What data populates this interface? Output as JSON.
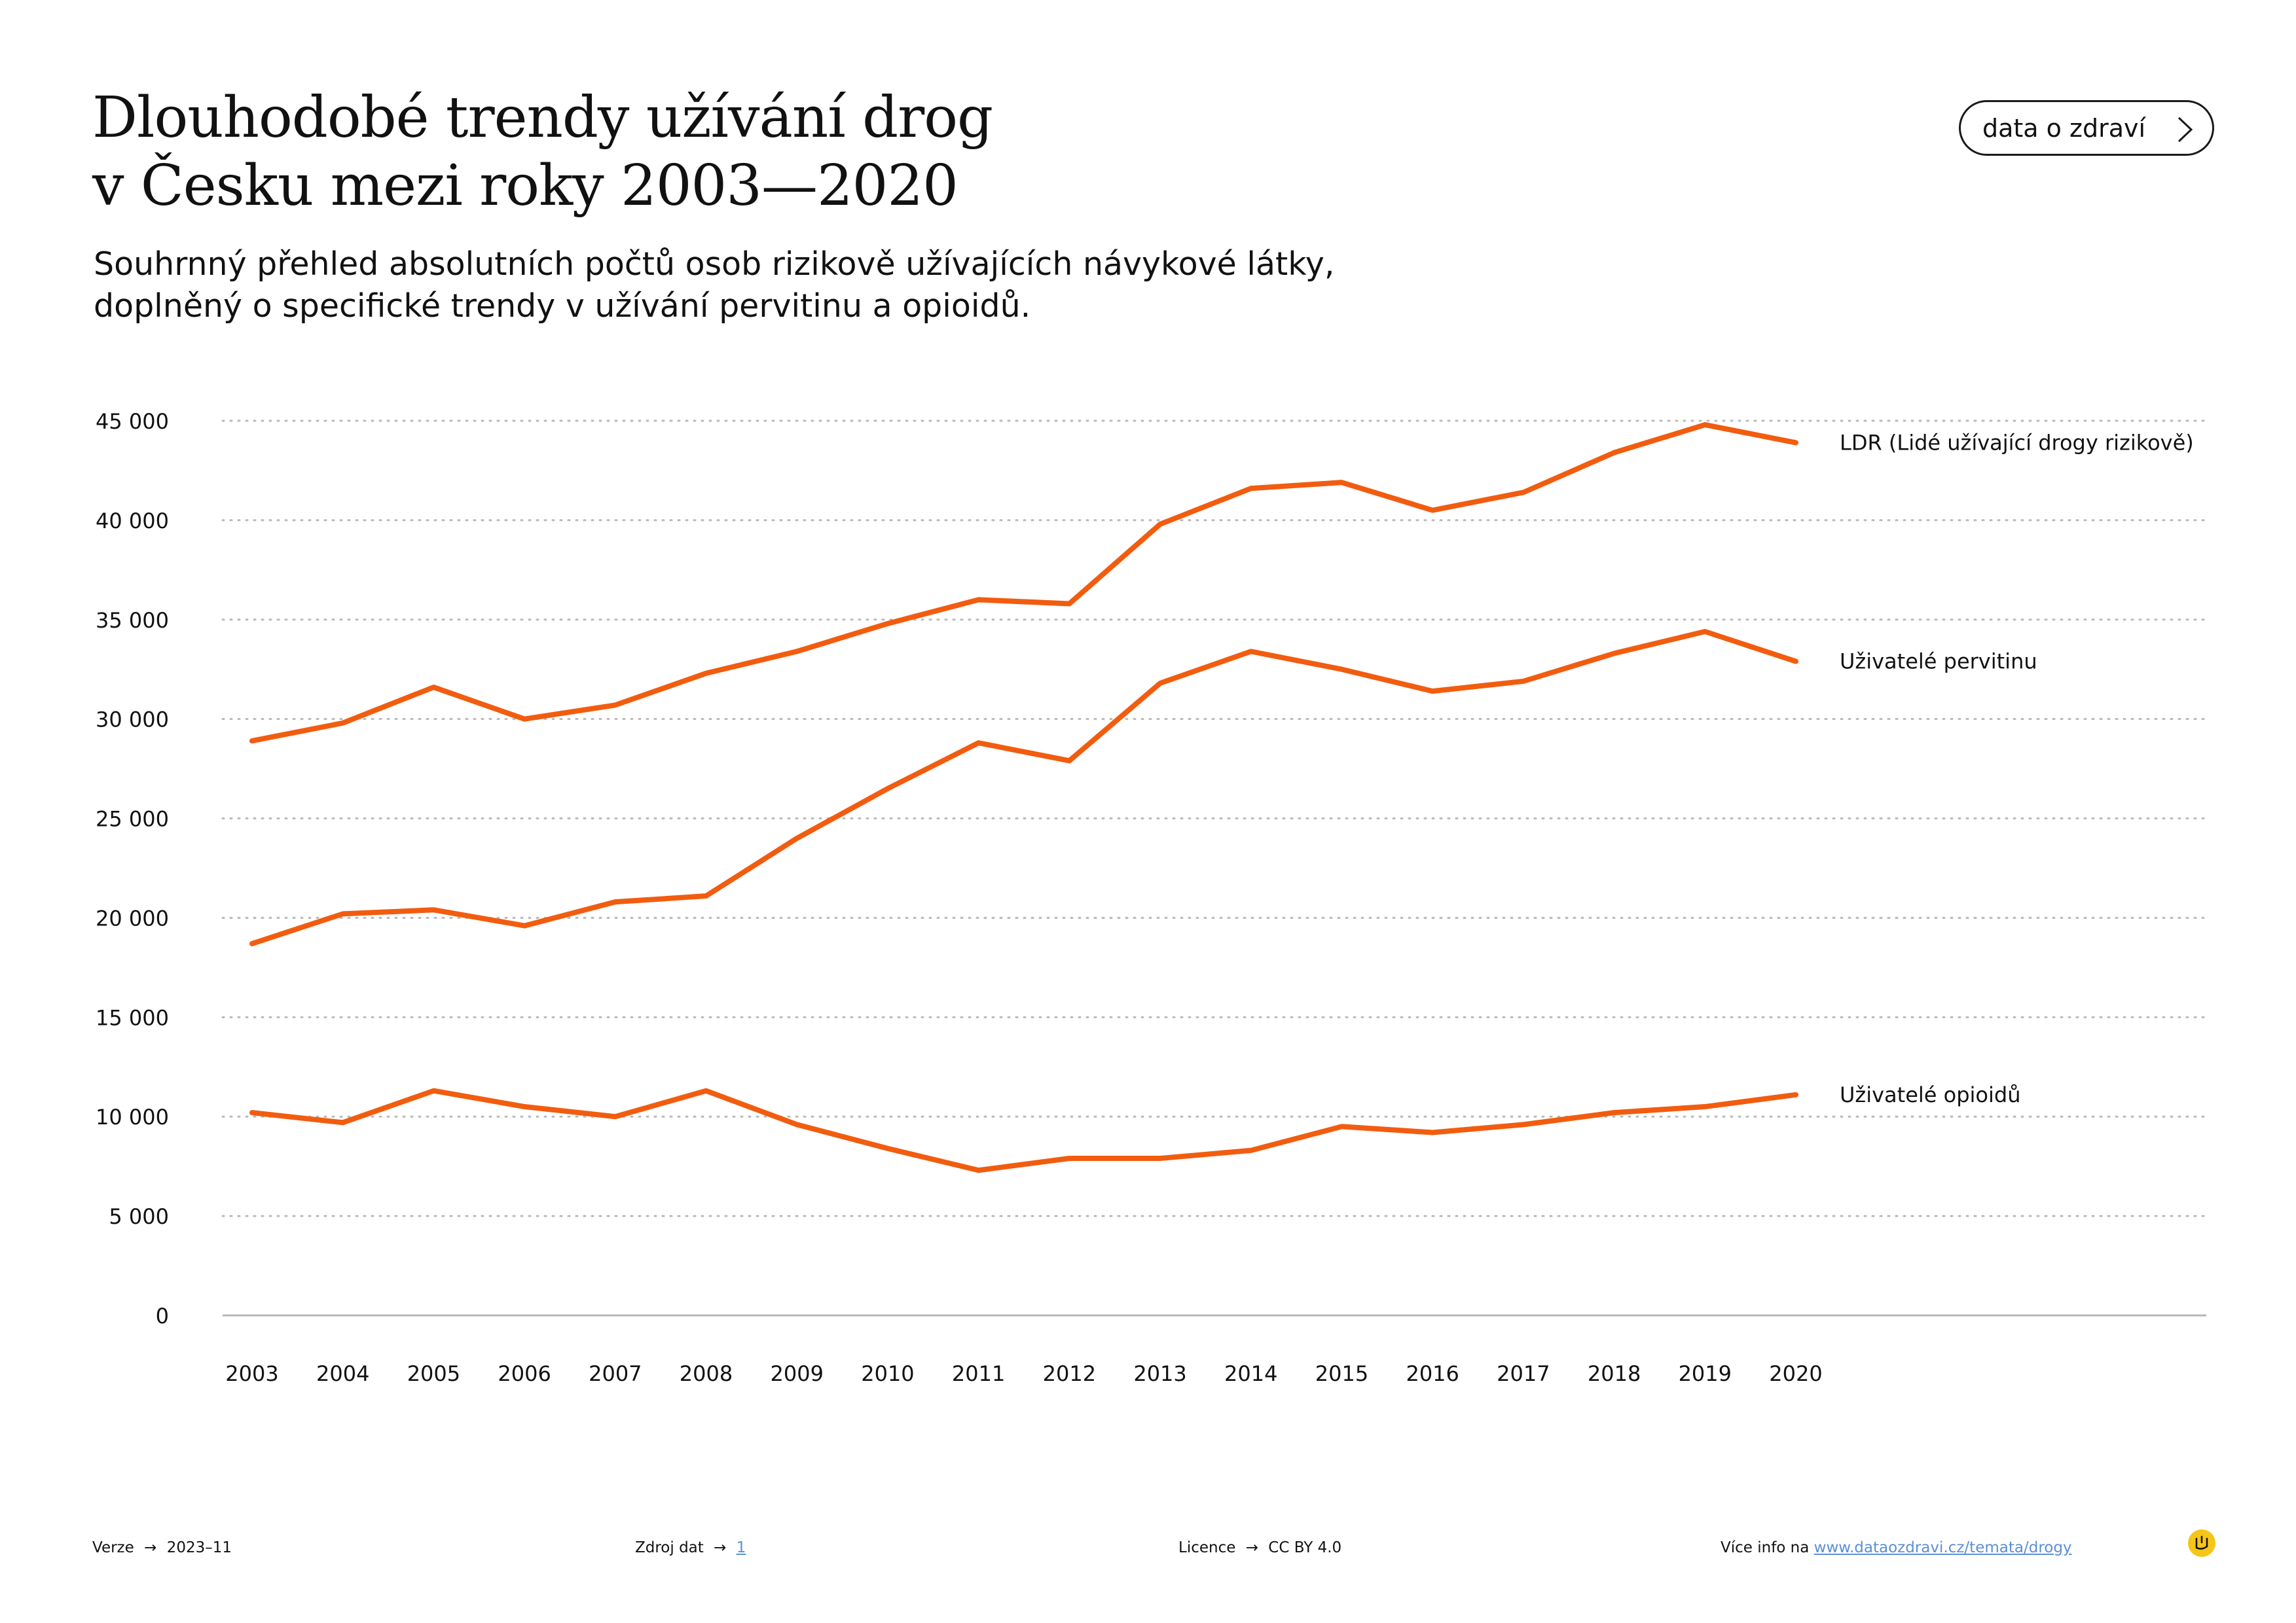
{
  "header": {
    "title_line1": "Dlouhodobé trendy užívání drog",
    "title_line2": "v Česku mezi roky 2003—2020",
    "subtitle_line1": "Souhrnný přehled absolutních počtů osob rizikově užívajících návykové látky,",
    "subtitle_line2": "doplněný o specifické trendy v užívání pervitinu a opioidů.",
    "brand_button": "data o zdraví",
    "brand_button_icon": "chevron-right-icon"
  },
  "chart_data": {
    "type": "line",
    "x": [
      "2003",
      "2004",
      "2005",
      "2006",
      "2007",
      "2008",
      "2009",
      "2010",
      "2011",
      "2012",
      "2013",
      "2014",
      "2015",
      "2016",
      "2017",
      "2018",
      "2019",
      "2020"
    ],
    "y_ticks": [
      "45 000",
      "40 000",
      "35 000",
      "30 000",
      "25 000",
      "20 000",
      "15 000",
      "10 000",
      "5 000",
      "0"
    ],
    "ylim": [
      0,
      45000
    ],
    "grid": "dotted horizontal",
    "series": [
      {
        "name": "LDR (Lidé užívající drogy rizikově)",
        "color": "#f25c0f",
        "values": [
          28900,
          29800,
          31600,
          30000,
          30700,
          32300,
          33400,
          34800,
          36000,
          35800,
          39800,
          41600,
          41900,
          40500,
          41400,
          43400,
          44800,
          43900
        ]
      },
      {
        "name": "Uživatelé pervitinu",
        "color": "#f25c0f",
        "values": [
          18700,
          20200,
          20400,
          19600,
          20800,
          21100,
          24000,
          26500,
          28800,
          27900,
          31800,
          33400,
          32500,
          31400,
          31900,
          33300,
          34400,
          32900
        ]
      },
      {
        "name": "Uživatelé opioidů",
        "color": "#f25c0f",
        "values": [
          10200,
          9700,
          11300,
          10500,
          10000,
          11300,
          9600,
          8400,
          7300,
          7900,
          7900,
          8300,
          9500,
          9200,
          9600,
          10200,
          10500,
          11100
        ]
      }
    ]
  },
  "footer": {
    "version_label": "Verze",
    "version_value": "2023–11",
    "source_label": "Zdroj dat",
    "source_value": "1",
    "license_label": "Licence",
    "license_value": "CC BY 4.0",
    "more_label": "Více info na",
    "more_link": "www.dataozdravi.cz/temata/drogy",
    "arrow": "→"
  }
}
